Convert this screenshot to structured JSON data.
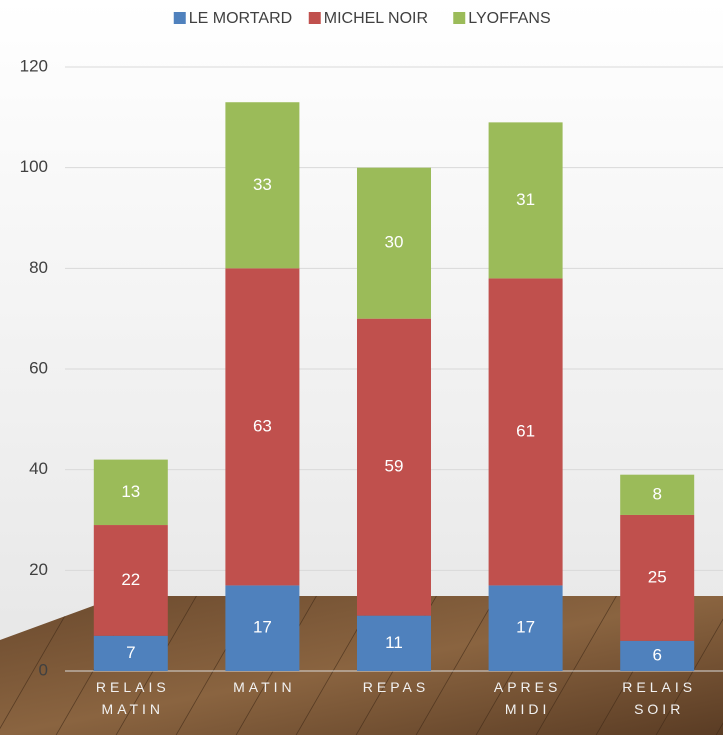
{
  "chart_data": {
    "type": "stacked_bar",
    "categories": [
      "RELAIS MATIN",
      "MATIN",
      "REPAS",
      "APRES MIDI",
      "RELAIS SOIR"
    ],
    "series": [
      {
        "name": "LE MORTARD",
        "color": "#4f81bd",
        "values": [
          7,
          17,
          11,
          17,
          6
        ]
      },
      {
        "name": "MICHEL NOIR",
        "color": "#c0504d",
        "values": [
          22,
          63,
          59,
          61,
          25
        ]
      },
      {
        "name": "LYOFFANS",
        "color": "#9bbb59",
        "values": [
          13,
          33,
          30,
          31,
          8
        ]
      }
    ],
    "ylim": [
      0,
      120
    ],
    "yticks": [
      0,
      20,
      40,
      60,
      80,
      100,
      120
    ],
    "grid": true,
    "legend": "top"
  }
}
